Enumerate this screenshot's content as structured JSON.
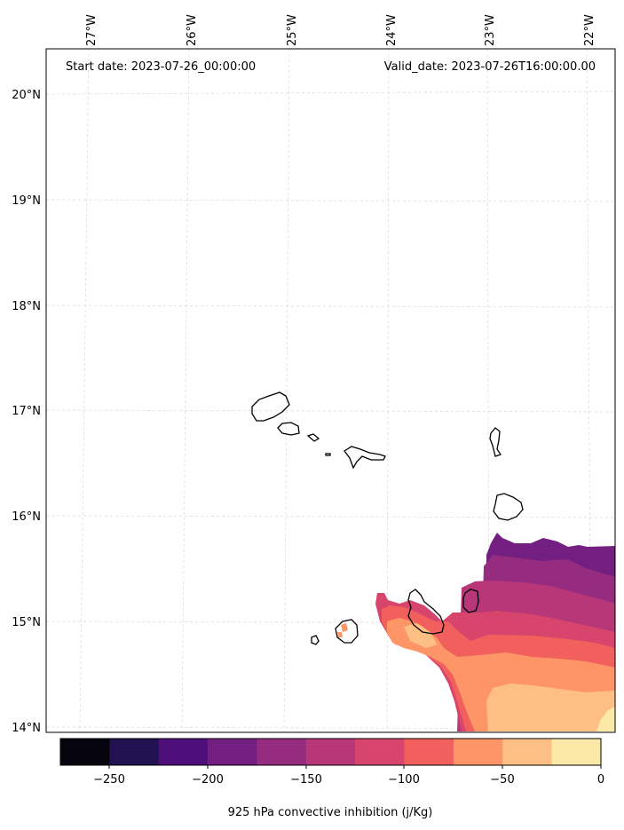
{
  "header": {
    "start_date": "Start date: 2023-07-26_00:00:00",
    "valid_date": "Valid_date: 2023-07-26T16:00:00.00"
  },
  "map": {
    "lon_labels": [
      "27°W",
      "26°W",
      "25°W",
      "24°W",
      "23°W",
      "22°W"
    ],
    "lat_labels": [
      "20°N",
      "19°N",
      "18°N",
      "17°N",
      "16°N",
      "15°N",
      "14°N"
    ],
    "extent": {
      "lon_min": -27.35,
      "lon_max": -21.75,
      "lat_min": 13.95,
      "lat_max": 20.4
    }
  },
  "colorbar": {
    "label": "925 hPa convective inhibition (j/Kg)",
    "ticks": [
      "−250",
      "−200",
      "−150",
      "−100",
      "−50",
      "0"
    ],
    "levels": [
      -275,
      -250,
      -225,
      -200,
      -175,
      -150,
      -125,
      -100,
      -75,
      -50,
      -25,
      0
    ],
    "colors": [
      "#05040f",
      "#221251",
      "#4f0f7a",
      "#721f81",
      "#962c80",
      "#b73779",
      "#d8456c",
      "#f1605d",
      "#fd9567",
      "#febf84",
      "#fde9a7"
    ]
  }
}
